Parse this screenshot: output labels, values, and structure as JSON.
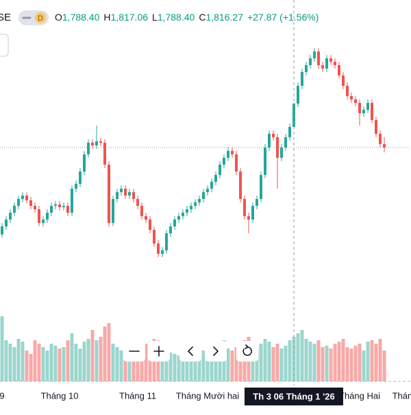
{
  "header": {
    "symbol": "SE",
    "interval": "D",
    "ohlc": [
      {
        "key": "O",
        "value": "1,788.40"
      },
      {
        "key": "H",
        "value": "1,817.06"
      },
      {
        "key": "L",
        "value": "1,788.40"
      },
      {
        "key": "C",
        "value": "1,816.27"
      }
    ],
    "change": "+27.87",
    "change_pct": "(+1.56%)"
  },
  "chart_data": {
    "type": "candlestick",
    "up_color": "#26a69a",
    "down_color": "#ef5350",
    "volume_up_color": "#9bd6ce",
    "volume_down_color": "#f7a9a7",
    "ylim": [
      1579.4,
      1907.3
    ],
    "open": [
      1660.0,
      1669.5,
      1677.7,
      1685.9,
      1694.1,
      1702.3,
      1706.4,
      1700.7,
      1694.1,
      1690.0,
      1673.6,
      1677.7,
      1685.9,
      1694.1,
      1695.8,
      1692.5,
      1694.1,
      1685.9,
      1714.6,
      1720.4,
      1735.1,
      1755.6,
      1769.5,
      1766.3,
      1771.2,
      1769.5,
      1743.3,
      1673.6,
      1702.3,
      1710.5,
      1714.6,
      1706.4,
      1710.5,
      1702.3,
      1694.1,
      1681.8,
      1677.7,
      1665.4,
      1649.1,
      1636.8,
      1640.9,
      1661.3,
      1669.5,
      1677.7,
      1681.8,
      1685.9,
      1690.0,
      1694.1,
      1698.2,
      1702.3,
      1710.5,
      1714.6,
      1722.8,
      1731.0,
      1743.3,
      1751.5,
      1759.7,
      1755.6,
      1735.1,
      1702.3,
      1681.8,
      1677.7,
      1694.1,
      1702.3,
      1731.0,
      1763.8,
      1780.2,
      1776.1,
      1751.5,
      1763.8,
      1776.1,
      1788.4,
      1816.27,
      1837.6,
      1854.0,
      1862.2,
      1870.4,
      1878.6,
      1862.2,
      1858.1,
      1870.4,
      1866.3,
      1862.2,
      1849.9,
      1837.6,
      1825.3,
      1821.2,
      1817.1,
      1804.8,
      1808.9,
      1817.1,
      1796.6,
      1780.2,
      1767.9
    ],
    "high": [
      1673.5,
      1681.7,
      1689.9,
      1698.1,
      1706.3,
      1710.4,
      1710.4,
      1704.7,
      1698.1,
      1694.0,
      1681.7,
      1689.9,
      1698.1,
      1699.8,
      1699.8,
      1698.1,
      1698.1,
      1718.6,
      1724.4,
      1739.1,
      1759.6,
      1773.5,
      1773.5,
      1790.0,
      1775.2,
      1773.5,
      1747.3,
      1706.3,
      1714.5,
      1718.6,
      1718.6,
      1714.5,
      1714.5,
      1706.3,
      1698.1,
      1685.8,
      1681.7,
      1669.4,
      1653.1,
      1644.9,
      1665.3,
      1673.5,
      1681.7,
      1685.8,
      1689.9,
      1694.0,
      1698.1,
      1702.2,
      1706.3,
      1714.5,
      1718.6,
      1726.8,
      1735.0,
      1747.3,
      1755.5,
      1763.7,
      1763.7,
      1759.6,
      1739.1,
      1706.3,
      1685.8,
      1698.1,
      1706.3,
      1735.0,
      1767.8,
      1784.2,
      1784.2,
      1780.1,
      1767.8,
      1780.1,
      1792.4,
      1817.06,
      1841.6,
      1858.0,
      1866.2,
      1874.4,
      1882.6,
      1882.6,
      1866.2,
      1874.4,
      1874.4,
      1870.3,
      1866.2,
      1853.9,
      1841.6,
      1829.3,
      1825.2,
      1821.1,
      1812.9,
      1821.1,
      1821.1,
      1800.6,
      1784.2,
      1776.0
    ],
    "low": [
      1656.0,
      1665.5,
      1673.7,
      1681.9,
      1690.1,
      1698.3,
      1696.7,
      1690.1,
      1686.0,
      1669.6,
      1669.6,
      1673.7,
      1681.9,
      1690.1,
      1688.5,
      1688.5,
      1681.9,
      1681.9,
      1710.6,
      1716.4,
      1731.1,
      1751.6,
      1762.3,
      1762.3,
      1765.5,
      1739.3,
      1669.6,
      1669.6,
      1698.3,
      1706.5,
      1702.4,
      1702.4,
      1698.3,
      1690.1,
      1677.8,
      1673.7,
      1661.4,
      1645.1,
      1632.8,
      1632.8,
      1636.9,
      1657.3,
      1665.5,
      1673.7,
      1677.8,
      1681.9,
      1686.0,
      1690.1,
      1694.2,
      1698.3,
      1706.5,
      1710.6,
      1718.8,
      1727.0,
      1739.3,
      1747.5,
      1751.6,
      1731.1,
      1698.3,
      1677.8,
      1661.3,
      1673.7,
      1690.1,
      1698.3,
      1727.0,
      1759.8,
      1772.1,
      1714.6,
      1747.5,
      1759.8,
      1772.1,
      1788.4,
      1812.3,
      1833.6,
      1850.0,
      1858.2,
      1866.4,
      1858.2,
      1854.1,
      1854.1,
      1862.3,
      1858.2,
      1845.9,
      1833.6,
      1821.3,
      1817.2,
      1813.1,
      1790.0,
      1800.8,
      1804.9,
      1792.6,
      1776.2,
      1763.9,
      1758.0
    ],
    "close": [
      1669.5,
      1677.7,
      1685.9,
      1694.1,
      1702.3,
      1706.4,
      1700.7,
      1694.1,
      1690.0,
      1673.6,
      1677.7,
      1685.9,
      1694.1,
      1695.8,
      1692.5,
      1694.1,
      1685.9,
      1714.6,
      1720.4,
      1735.1,
      1755.6,
      1769.5,
      1766.3,
      1771.2,
      1769.5,
      1743.3,
      1673.6,
      1702.3,
      1710.5,
      1714.6,
      1706.4,
      1710.5,
      1702.3,
      1694.1,
      1681.8,
      1677.7,
      1665.4,
      1649.1,
      1636.8,
      1640.9,
      1661.3,
      1669.5,
      1677.7,
      1681.8,
      1685.9,
      1690.0,
      1694.1,
      1698.2,
      1702.3,
      1710.5,
      1714.6,
      1722.8,
      1731.0,
      1743.3,
      1751.5,
      1759.7,
      1755.6,
      1735.1,
      1702.3,
      1681.8,
      1677.7,
      1694.1,
      1702.3,
      1731.0,
      1763.8,
      1780.2,
      1776.1,
      1751.5,
      1763.8,
      1776.1,
      1788.4,
      1816.27,
      1837.6,
      1854.0,
      1862.2,
      1870.4,
      1878.6,
      1862.2,
      1858.1,
      1870.4,
      1866.3,
      1862.2,
      1849.9,
      1837.6,
      1825.3,
      1821.2,
      1817.1,
      1804.8,
      1808.9,
      1817.1,
      1796.6,
      1780.2,
      1767.9,
      1763.8
    ],
    "volume": [
      95,
      60,
      55,
      50,
      62,
      58,
      45,
      40,
      60,
      55,
      50,
      45,
      55,
      52,
      48,
      50,
      60,
      70,
      55,
      48,
      58,
      62,
      75,
      60,
      65,
      80,
      85,
      55,
      50,
      45,
      48,
      42,
      40,
      45,
      50,
      55,
      58,
      62,
      60,
      50,
      45,
      42,
      40,
      38,
      42,
      45,
      40,
      38,
      42,
      45,
      48,
      50,
      52,
      55,
      60,
      48,
      45,
      50,
      55,
      60,
      65,
      52,
      48,
      55,
      62,
      58,
      50,
      55,
      48,
      52,
      60,
      65,
      70,
      75,
      62,
      58,
      55,
      60,
      50,
      52,
      48,
      55,
      58,
      62,
      50,
      48,
      52,
      55,
      45,
      58,
      60,
      55,
      62,
      45
    ],
    "xticks": [
      {
        "value": 0,
        "label": "9"
      },
      {
        "value": 14,
        "label": "Tháng 10"
      },
      {
        "value": 33,
        "label": "Tháng 11"
      },
      {
        "value": 50,
        "label": "Tháng Mười hai"
      },
      {
        "value": 87,
        "label": "Tháng Hai"
      },
      {
        "value": 98,
        "label": "Tháng"
      }
    ],
    "crosshair": {
      "index": 71,
      "label": "Th 3 06 Tháng 1 '26"
    }
  }
}
